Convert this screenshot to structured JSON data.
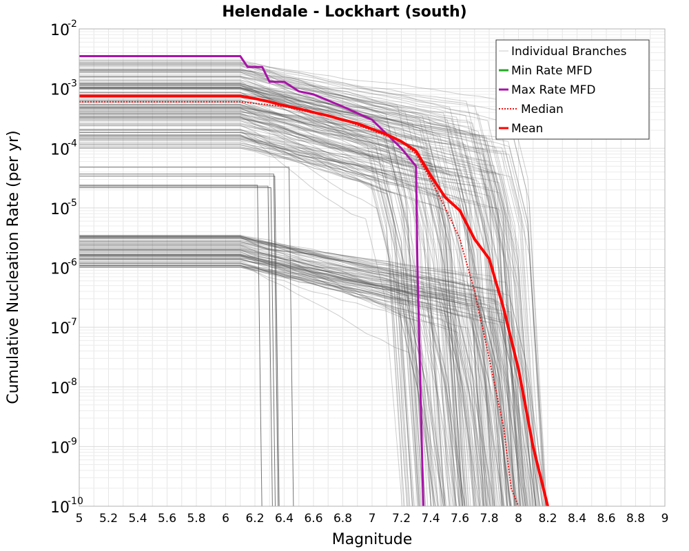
{
  "chart_data": {
    "type": "line",
    "title": "Helendale - Lockhart (south)",
    "xlabel": "Magnitude",
    "ylabel": "Cumulative Nucleation Rate (per yr)",
    "xlim": [
      5,
      9
    ],
    "ylim": [
      1e-10,
      0.01
    ],
    "yscale": "log",
    "grid": true,
    "legend_position": "top-right",
    "x_ticks": [
      "5",
      "5.2",
      "5.4",
      "5.6",
      "5.8",
      "6",
      "6.2",
      "6.4",
      "6.6",
      "6.8",
      "7",
      "7.2",
      "7.4",
      "7.6",
      "7.8",
      "8",
      "8.2",
      "8.4",
      "8.6",
      "8.8",
      "9"
    ],
    "y_ticks": [
      {
        "base": "10",
        "exp": "-2"
      },
      {
        "base": "10",
        "exp": "-3"
      },
      {
        "base": "10",
        "exp": "-4"
      },
      {
        "base": "10",
        "exp": "-5"
      },
      {
        "base": "10",
        "exp": "-6"
      },
      {
        "base": "10",
        "exp": "-7"
      },
      {
        "base": "10",
        "exp": "-8"
      },
      {
        "base": "10",
        "exp": "-9"
      },
      {
        "base": "10",
        "exp": "-10"
      }
    ],
    "legend": [
      {
        "name": "Individual Branches",
        "color": "#c8c8c8",
        "style": "solid"
      },
      {
        "name": "Min Rate MFD",
        "color": "#22aa22",
        "style": "solid"
      },
      {
        "name": "Max Rate MFD",
        "color": "#aa11aa",
        "style": "solid"
      },
      {
        "name": "Median",
        "color": "#ee1111",
        "style": "dotted"
      },
      {
        "name": "Mean",
        "color": "#ff0000",
        "style": "solid"
      }
    ],
    "series": [
      {
        "name": "Max Rate MFD",
        "color": "#aa11aa",
        "x": [
          5.0,
          6.1,
          6.15,
          6.25,
          6.3,
          6.4,
          6.5,
          6.6,
          6.8,
          7.0,
          7.2,
          7.3,
          7.31,
          7.35
        ],
        "y": [
          0.0035,
          0.0035,
          0.0023,
          0.0023,
          0.0013,
          0.0013,
          0.0009,
          0.0008,
          0.0005,
          0.0003,
          0.0001,
          5e-05,
          1e-06,
          1e-10
        ]
      },
      {
        "name": "Mean",
        "color": "#ff0000",
        "x": [
          5.0,
          6.1,
          6.2,
          6.3,
          6.4,
          6.5,
          6.6,
          6.7,
          6.8,
          6.9,
          7.0,
          7.1,
          7.2,
          7.3,
          7.4,
          7.5,
          7.6,
          7.7,
          7.8,
          7.9,
          8.0,
          8.1,
          8.2
        ],
        "y": [
          0.00075,
          0.00075,
          0.00068,
          0.0006,
          0.00052,
          0.00046,
          0.0004,
          0.00035,
          0.0003,
          0.00026,
          0.00021,
          0.00017,
          0.00013,
          9e-05,
          3.5e-05,
          1.5e-05,
          9e-06,
          3e-06,
          1.4e-06,
          2e-07,
          2e-08,
          1e-09,
          1e-10
        ]
      },
      {
        "name": "Median",
        "color": "#ee1111",
        "x": [
          5.0,
          6.1,
          6.4,
          6.8,
          7.0,
          7.2,
          7.3,
          7.4,
          7.5,
          7.6,
          7.7,
          7.8,
          7.9,
          7.95,
          8.0
        ],
        "y": [
          0.0006,
          0.0006,
          0.0005,
          0.0003,
          0.0002,
          0.00013,
          8e-05,
          3e-05,
          1e-05,
          3e-06,
          4e-07,
          3e-08,
          2e-09,
          2e-10,
          1e-10
        ]
      }
    ],
    "branch_groups": [
      {
        "rate_range": [
          0.0001,
          0.003
        ],
        "end_mag_range": [
          7.2,
          8.2
        ],
        "count": 160
      },
      {
        "rate_range": [
          1e-06,
          3.5e-06
        ],
        "end_mag_range": [
          7.4,
          8.2
        ],
        "count": 90
      },
      {
        "rate_range": [
          2e-05,
          6e-05
        ],
        "end_mag_range": [
          6.1,
          6.45
        ],
        "count": 6
      }
    ]
  }
}
